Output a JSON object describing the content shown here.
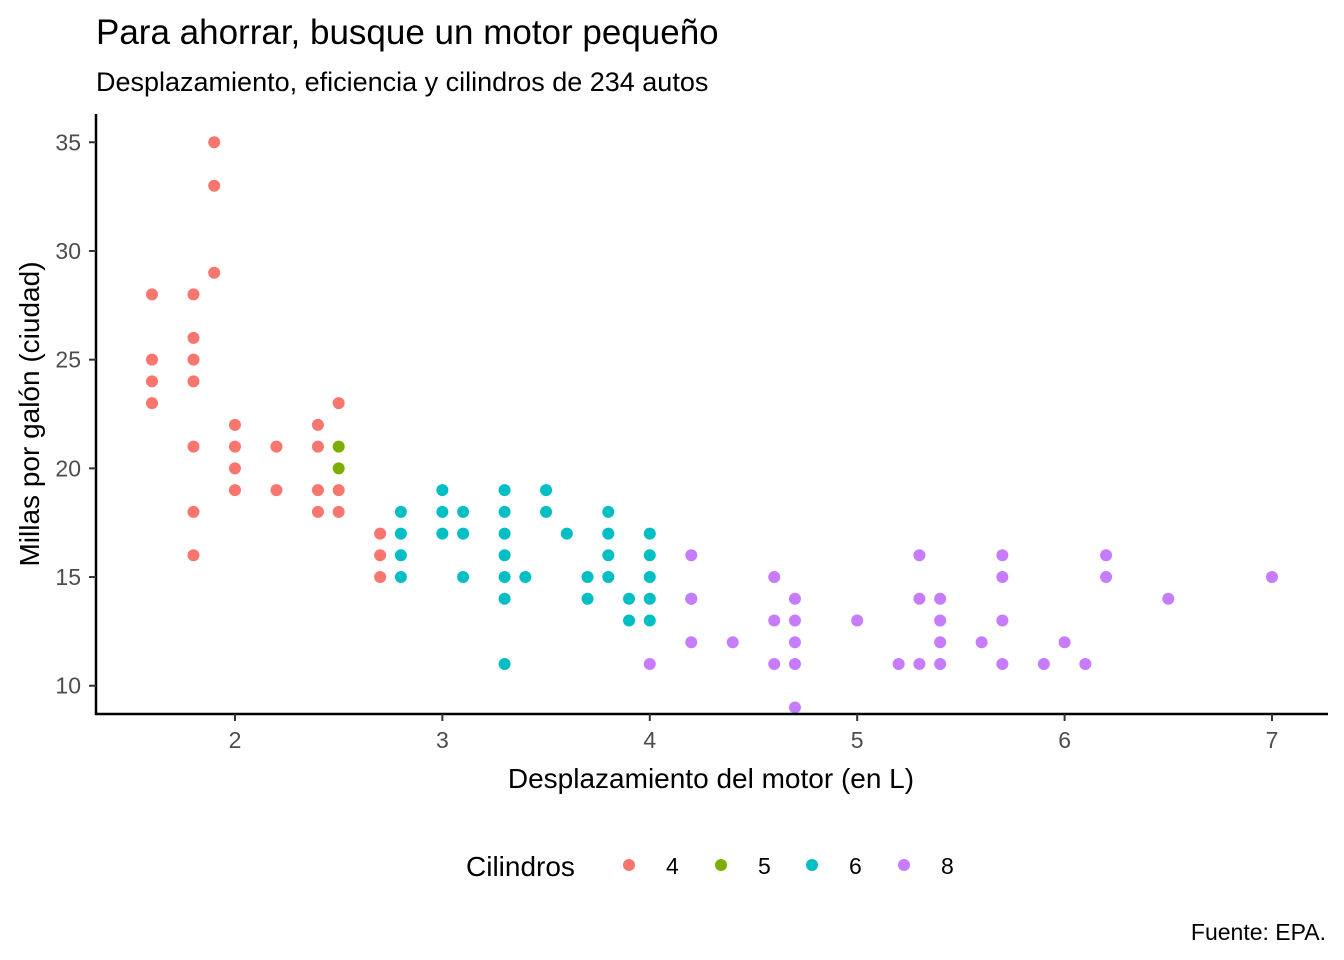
{
  "chart_data": {
    "type": "scatter",
    "title": "Para ahorrar, busque un motor pequeño",
    "subtitle": "Desplazamiento, eficiencia y cilindros de 234 autos",
    "xlabel": "Desplazamiento del motor (en L)",
    "ylabel": "Millas por galón (ciudad)",
    "caption": "Fuente: EPA.",
    "xlim": [
      1.33,
      7.27
    ],
    "ylim": [
      8.7,
      36.3
    ],
    "x_ticks": [
      2,
      3,
      4,
      5,
      6,
      7
    ],
    "y_ticks": [
      10,
      15,
      20,
      25,
      30,
      35
    ],
    "grid": false,
    "legend": {
      "title": "Cilindros",
      "position": "bottom"
    },
    "series": [
      {
        "name": "4",
        "color": "#F8766D",
        "points": [
          [
            1.6,
            28
          ],
          [
            1.6,
            25
          ],
          [
            1.6,
            24
          ],
          [
            1.6,
            23
          ],
          [
            1.8,
            28
          ],
          [
            1.8,
            26
          ],
          [
            1.8,
            25
          ],
          [
            1.8,
            24
          ],
          [
            1.8,
            21
          ],
          [
            1.8,
            18
          ],
          [
            1.8,
            16
          ],
          [
            1.9,
            35
          ],
          [
            1.9,
            33
          ],
          [
            1.9,
            29
          ],
          [
            2.0,
            22
          ],
          [
            2.0,
            21
          ],
          [
            2.0,
            20
          ],
          [
            2.0,
            19
          ],
          [
            2.2,
            21
          ],
          [
            2.2,
            19
          ],
          [
            2.4,
            22
          ],
          [
            2.4,
            21
          ],
          [
            2.4,
            19
          ],
          [
            2.4,
            18
          ],
          [
            2.5,
            23
          ],
          [
            2.5,
            19
          ],
          [
            2.5,
            18
          ],
          [
            2.7,
            17
          ],
          [
            2.7,
            16
          ],
          [
            2.7,
            15
          ]
        ]
      },
      {
        "name": "5",
        "color": "#7CAE00",
        "points": [
          [
            2.5,
            21
          ],
          [
            2.5,
            20
          ]
        ]
      },
      {
        "name": "6",
        "color": "#00BFC4",
        "points": [
          [
            2.8,
            18
          ],
          [
            2.8,
            17
          ],
          [
            2.8,
            16
          ],
          [
            2.8,
            15
          ],
          [
            3.0,
            19
          ],
          [
            3.0,
            18
          ],
          [
            3.0,
            17
          ],
          [
            3.1,
            18
          ],
          [
            3.1,
            17
          ],
          [
            3.1,
            15
          ],
          [
            3.3,
            19
          ],
          [
            3.3,
            18
          ],
          [
            3.3,
            17
          ],
          [
            3.3,
            16
          ],
          [
            3.3,
            15
          ],
          [
            3.3,
            14
          ],
          [
            3.3,
            11
          ],
          [
            3.4,
            15
          ],
          [
            3.5,
            19
          ],
          [
            3.5,
            18
          ],
          [
            3.6,
            17
          ],
          [
            3.7,
            15
          ],
          [
            3.7,
            14
          ],
          [
            3.8,
            18
          ],
          [
            3.8,
            17
          ],
          [
            3.8,
            16
          ],
          [
            3.8,
            15
          ],
          [
            3.9,
            14
          ],
          [
            3.9,
            13
          ],
          [
            4.0,
            17
          ],
          [
            4.0,
            16
          ],
          [
            4.0,
            15
          ],
          [
            4.0,
            14
          ],
          [
            4.0,
            13
          ],
          [
            4.2,
            14
          ]
        ]
      },
      {
        "name": "8",
        "color": "#C77CFF",
        "points": [
          [
            4.0,
            11
          ],
          [
            4.2,
            16
          ],
          [
            4.2,
            14
          ],
          [
            4.2,
            12
          ],
          [
            4.4,
            12
          ],
          [
            4.6,
            15
          ],
          [
            4.6,
            13
          ],
          [
            4.6,
            11
          ],
          [
            4.7,
            14
          ],
          [
            4.7,
            13
          ],
          [
            4.7,
            12
          ],
          [
            4.7,
            11
          ],
          [
            4.7,
            9
          ],
          [
            5.0,
            13
          ],
          [
            5.2,
            11
          ],
          [
            5.3,
            16
          ],
          [
            5.3,
            14
          ],
          [
            5.3,
            11
          ],
          [
            5.4,
            14
          ],
          [
            5.4,
            13
          ],
          [
            5.4,
            12
          ],
          [
            5.4,
            11
          ],
          [
            5.6,
            12
          ],
          [
            5.7,
            16
          ],
          [
            5.7,
            15
          ],
          [
            5.7,
            13
          ],
          [
            5.7,
            11
          ],
          [
            5.9,
            11
          ],
          [
            6.0,
            12
          ],
          [
            6.1,
            11
          ],
          [
            6.2,
            16
          ],
          [
            6.2,
            15
          ],
          [
            6.5,
            14
          ],
          [
            7.0,
            15
          ]
        ]
      }
    ]
  }
}
